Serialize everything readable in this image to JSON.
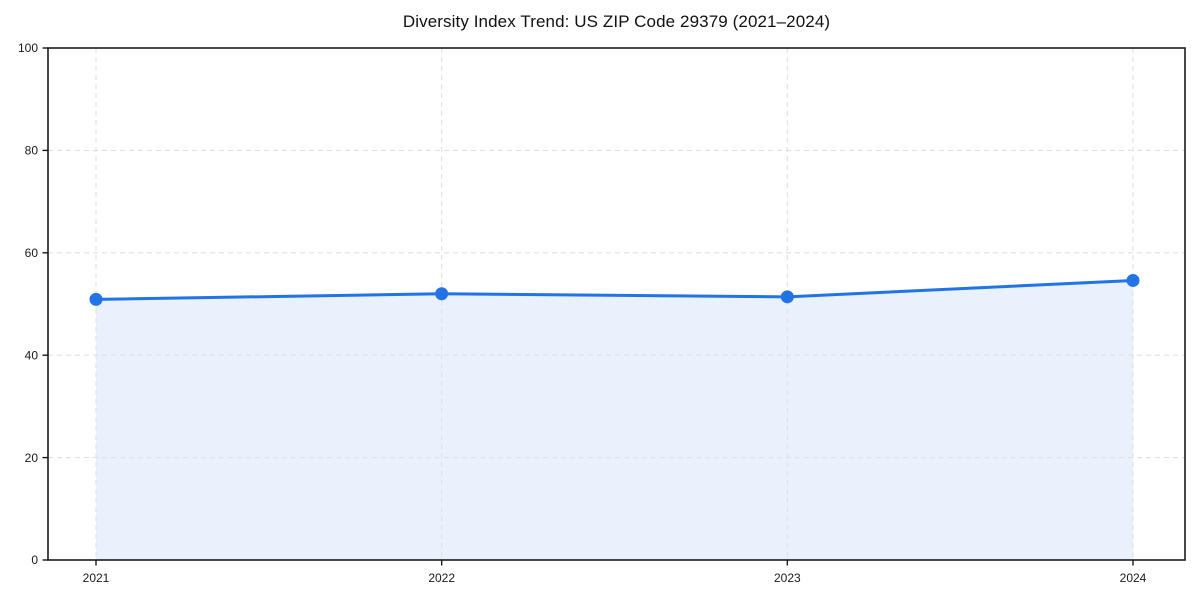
{
  "title": "Diversity Index Trend: US ZIP Code 29379 (2021–2024)",
  "chart_data": {
    "type": "area",
    "title": "Diversity Index Trend: US ZIP Code 29379 (2021–2024)",
    "x": [
      2021,
      2022,
      2023,
      2024
    ],
    "xticks": [
      "2021",
      "2022",
      "2023",
      "2024"
    ],
    "series": [
      {
        "name": "Diversity Index",
        "values": [
          50.9,
          52.0,
          51.4,
          54.6
        ]
      }
    ],
    "xlabel": "",
    "ylabel": "",
    "ylim": [
      0,
      100
    ],
    "yticks": [
      0,
      20,
      40,
      60,
      80,
      100
    ],
    "grid": true,
    "grid_style": "dashed",
    "legend_position": "none",
    "colors": {
      "line": "#2273e6",
      "marker": "#2273e6",
      "fill": "rgba(34,115,230,0.10)",
      "grid": "#e0e0e0",
      "spine": "#1a1a1a",
      "tick_label": "#1a1a1a",
      "title": "#111111",
      "background": "#ffffff"
    }
  }
}
